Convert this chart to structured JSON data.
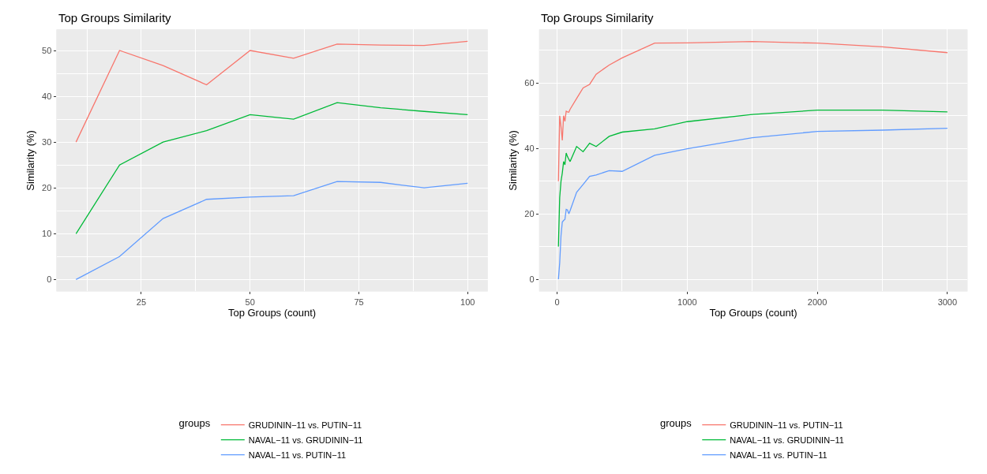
{
  "chart_data": [
    {
      "type": "line",
      "title": "Top Groups Similarity",
      "xlabel": "Top Groups (count)",
      "ylabel": "Similarity (%)",
      "legend_title": "groups",
      "legend": "bottom",
      "grid": true,
      "x": [
        10,
        20,
        30,
        40,
        50,
        60,
        70,
        80,
        90,
        100
      ],
      "xlim": [
        5.5,
        104.6
      ],
      "xticks": [
        25,
        50,
        75,
        100
      ],
      "ylim": [
        -2.6,
        54.6
      ],
      "yticks": [
        0,
        10,
        20,
        30,
        40,
        50
      ],
      "series": [
        {
          "name": "GRUDININ−11 vs. PUTIN−11",
          "color": "#f8766d",
          "values": [
            30,
            50,
            46.7,
            42.5,
            50,
            48.3,
            51.4,
            51.2,
            51.1,
            52
          ]
        },
        {
          "name": "NAVAL−11 vs. GRUDININ−11",
          "color": "#00ba38",
          "values": [
            10,
            25,
            30,
            32.5,
            36,
            35,
            38.6,
            37.5,
            36.7,
            36
          ]
        },
        {
          "name": "NAVAL−11 vs. PUTIN−11",
          "color": "#619cff",
          "values": [
            0,
            5,
            13.3,
            17.5,
            18,
            18.3,
            21.4,
            21.2,
            20,
            21
          ]
        }
      ]
    },
    {
      "type": "line",
      "title": "Top Groups Similarity",
      "xlabel": "Top Groups (count)",
      "ylabel": "Similarity (%)",
      "legend_title": "groups",
      "legend": "bottom",
      "grid": true,
      "x": [
        10,
        20,
        30,
        40,
        50,
        60,
        70,
        80,
        90,
        100,
        150,
        200,
        250,
        300,
        400,
        500,
        750,
        1000,
        1500,
        2000,
        2500,
        3000
      ],
      "xlim": [
        -138,
        3154
      ],
      "xticks": [
        0,
        1000,
        2000,
        3000
      ],
      "ylim": [
        -3.7,
        76.4
      ],
      "yticks": [
        0,
        20,
        40,
        60
      ],
      "series": [
        {
          "name": "GRUDININ−11 vs. PUTIN−11",
          "color": "#f8766d",
          "values": [
            30,
            50,
            46.7,
            42.5,
            50,
            48.3,
            51.4,
            51.2,
            51.1,
            52,
            55.3,
            58.5,
            59.6,
            62.7,
            65.5,
            67.7,
            72.2,
            72.3,
            72.7,
            72.2,
            71.1,
            69.3
          ]
        },
        {
          "name": "NAVAL−11 vs. GRUDININ−11",
          "color": "#00ba38",
          "values": [
            10,
            25,
            30,
            32.5,
            36,
            35,
            38.6,
            37.5,
            36.7,
            36,
            40.6,
            39,
            41.6,
            40.6,
            43.7,
            45,
            46,
            48.2,
            50.4,
            51.7,
            51.7,
            51.2
          ]
        },
        {
          "name": "NAVAL−11 vs. PUTIN−11",
          "color": "#619cff",
          "values": [
            0,
            5,
            13.3,
            17.5,
            18,
            18.3,
            21.4,
            21.2,
            20,
            21,
            26.6,
            29,
            31.5,
            31.9,
            33.2,
            33,
            37.9,
            39.9,
            43.3,
            45.2,
            45.6,
            46.2
          ]
        }
      ]
    }
  ]
}
